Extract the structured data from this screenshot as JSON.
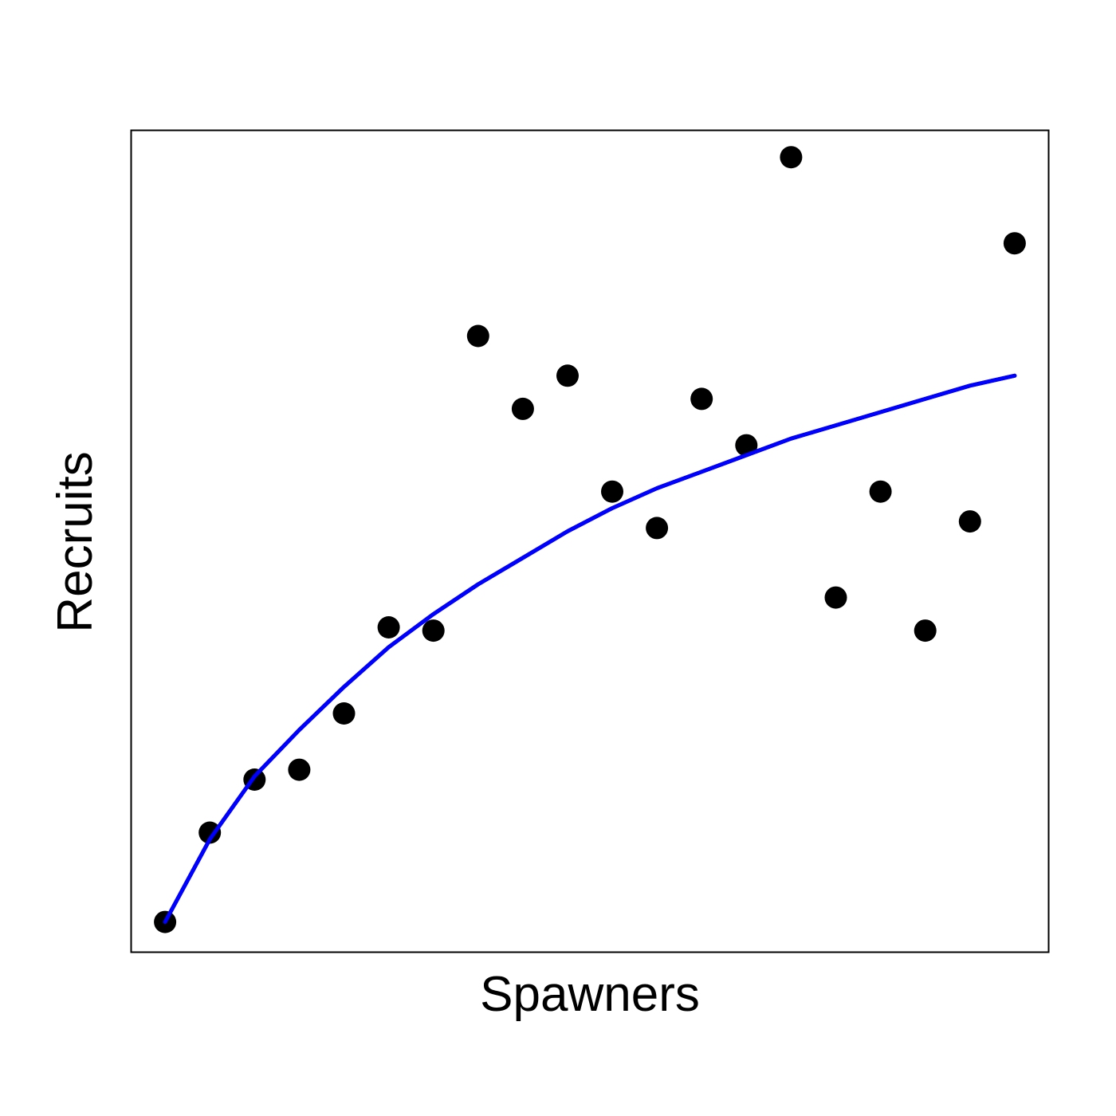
{
  "chart_data": {
    "type": "scatter",
    "title": "",
    "xlabel": "Spawners",
    "ylabel": "Recruits",
    "xlim": [
      0.25,
      20.75
    ],
    "ylim": [
      -0.4,
      24.4
    ],
    "axis_ticks_shown": false,
    "grid": false,
    "legend": "none",
    "series": [
      {
        "kind": "points",
        "color": "#000000",
        "x": [
          1,
          2,
          3,
          4,
          5,
          6,
          7,
          8,
          9,
          10,
          11,
          12,
          13,
          14,
          15,
          16,
          17,
          18,
          19,
          20
        ],
        "y": [
          0.5,
          3.2,
          4.8,
          5.1,
          6.8,
          9.4,
          9.3,
          18.2,
          16.0,
          17.0,
          13.5,
          12.4,
          16.3,
          14.9,
          23.6,
          10.3,
          13.5,
          9.3,
          12.6,
          21.0
        ]
      },
      {
        "kind": "fitted-curve",
        "color": "#0000ff",
        "x": [
          1,
          2,
          3,
          4,
          5,
          6,
          7,
          8,
          9,
          10,
          11,
          12,
          13,
          14,
          15,
          16,
          17,
          18,
          19,
          20
        ],
        "y": [
          0.5,
          3.0,
          4.9,
          6.3,
          7.6,
          8.8,
          9.8,
          10.7,
          11.5,
          12.3,
          13.0,
          13.6,
          14.1,
          14.6,
          15.1,
          15.5,
          15.9,
          16.3,
          16.7,
          17.0
        ]
      }
    ]
  }
}
